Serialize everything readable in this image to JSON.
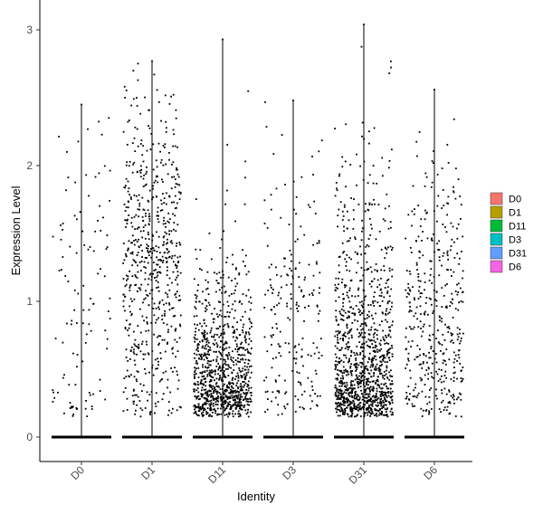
{
  "chart_data": {
    "type": "scatter",
    "subtype": "violin-jitter",
    "xlabel": "Identity",
    "ylabel": "Expression Level",
    "categories": [
      "D0",
      "D1",
      "D11",
      "D3",
      "D31",
      "D6"
    ],
    "ylim": [
      -0.15,
      3.2
    ],
    "yticks": [
      0,
      1,
      2,
      3
    ],
    "grid": false,
    "legend_position": "right",
    "legend": [
      {
        "label": "D0",
        "color": "#F8766D"
      },
      {
        "label": "D1",
        "color": "#B79F00"
      },
      {
        "label": "D11",
        "color": "#00BA38"
      },
      {
        "label": "D3",
        "color": "#00BFC4"
      },
      {
        "label": "D31",
        "color": "#619CFF"
      },
      {
        "label": "D6",
        "color": "#F564E3"
      }
    ],
    "groups": [
      {
        "name": "D0",
        "max": 2.45,
        "n_expressing": 110,
        "center": 1.0,
        "spread": 0.75,
        "skew": 0.0
      },
      {
        "name": "D1",
        "max": 2.77,
        "n_expressing": 650,
        "center": 1.3,
        "spread": 0.6,
        "skew": 0.0
      },
      {
        "name": "D11",
        "max": 2.93,
        "n_expressing": 950,
        "center": 0.45,
        "spread": 0.55,
        "skew": 1.0
      },
      {
        "name": "D3",
        "max": 2.48,
        "n_expressing": 210,
        "center": 0.9,
        "spread": 0.6,
        "skew": 0.3
      },
      {
        "name": "D31",
        "max": 3.04,
        "n_expressing": 1150,
        "center": 0.6,
        "spread": 0.7,
        "skew": 0.8
      },
      {
        "name": "D6",
        "max": 2.56,
        "n_expressing": 420,
        "center": 0.9,
        "spread": 0.55,
        "skew": 0.3
      }
    ]
  }
}
